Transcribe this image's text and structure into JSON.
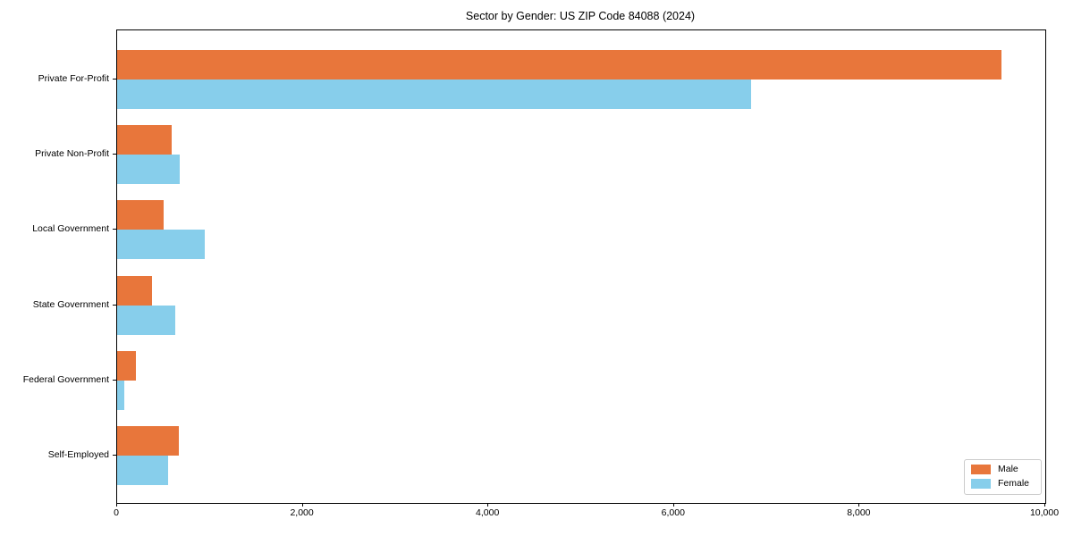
{
  "chart_data": {
    "type": "bar",
    "orientation": "horizontal",
    "title": "Sector by Gender: US ZIP Code 84088 (2024)",
    "categories": [
      "Private For-Profit",
      "Private Non-Profit",
      "Local Government",
      "State Government",
      "Federal Government",
      "Self-Employed"
    ],
    "series": [
      {
        "name": "Male",
        "color": "#e8763b",
        "values": [
          9530,
          590,
          500,
          375,
          205,
          660
        ]
      },
      {
        "name": "Female",
        "color": "#87ceeb",
        "values": [
          6830,
          670,
          945,
          630,
          75,
          545
        ]
      }
    ],
    "xlabel": "",
    "ylabel": "",
    "xlim": [
      0,
      10000
    ],
    "xticks": [
      0,
      2000,
      4000,
      6000,
      8000,
      10000
    ],
    "xtick_labels": [
      "0",
      "2,000",
      "4,000",
      "6,000",
      "8,000",
      "10,000"
    ],
    "grid": false,
    "legend": {
      "position": "lower right",
      "entries": [
        "Male",
        "Female"
      ]
    }
  }
}
